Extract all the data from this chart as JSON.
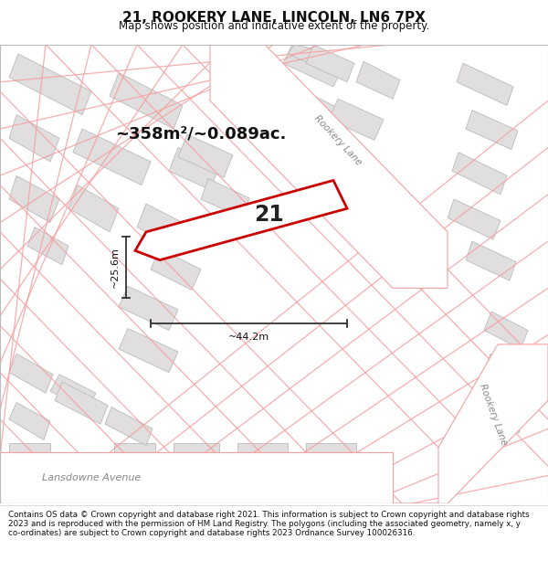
{
  "title": "21, ROOKERY LANE, LINCOLN, LN6 7PX",
  "subtitle": "Map shows position and indicative extent of the property.",
  "area_text": "~358m²/~0.089ac.",
  "dim1_text": "~25.6m",
  "dim2_text": "~44.2m",
  "plot_number": "21",
  "road_label1": "Rookery Lane",
  "road_label2": "Rookery Lane",
  "street_label": "Lansdowne Avenue",
  "footer": "Contains OS data © Crown copyright and database right 2021. This information is subject to Crown copyright and database rights 2023 and is reproduced with the permission of HM Land Registry. The polygons (including the associated geometry, namely x, y co-ordinates) are subject to Crown copyright and database rights 2023 Ordnance Survey 100026316.",
  "bg_color": "#ffffff",
  "map_bg": "#ffffff",
  "building_color": "#e0dede",
  "plot_line_color": "#cc0000",
  "parcel_line_color": "#f0a0a0",
  "road_fill": "#f5f5f5",
  "text_color": "#333333",
  "dim_line_color": "#333333",
  "title_fontsize": 11,
  "subtitle_fontsize": 8.5,
  "footer_fontsize": 6.3
}
